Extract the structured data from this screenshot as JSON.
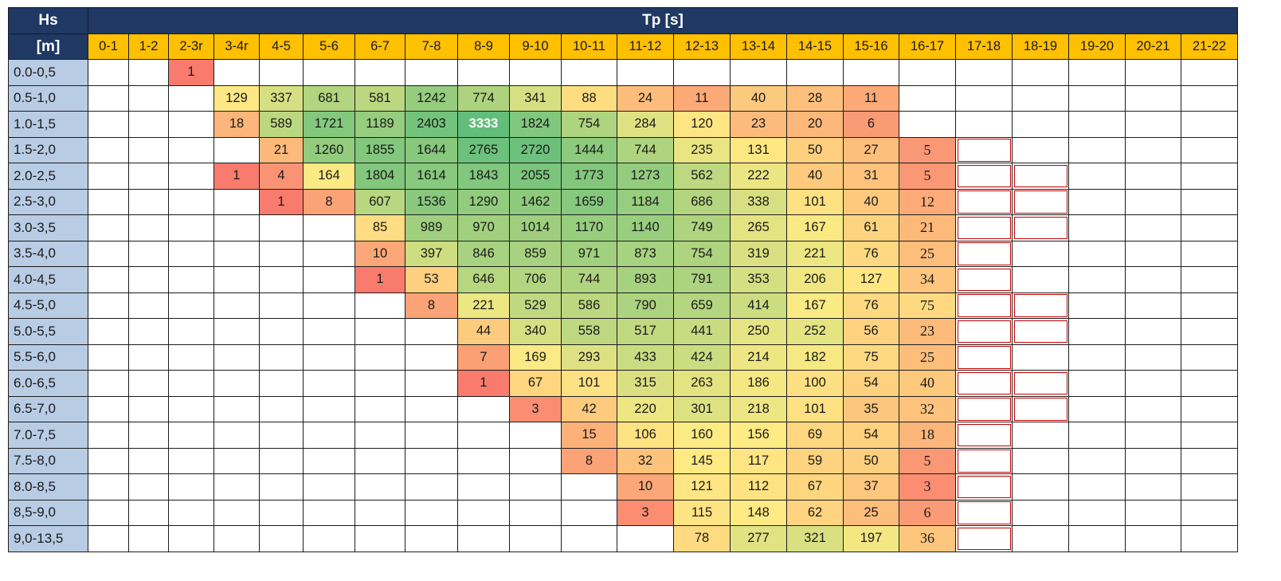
{
  "table": {
    "row_header_title": "Hs",
    "row_header_unit": "[m]",
    "col_header_title": "Tp [s]",
    "tp_bins": [
      "0-1",
      "1-2",
      "2-3r",
      "3-4r",
      "4-5",
      "5-6",
      "6-7",
      "7-8",
      "8-9",
      "9-10",
      "10-11",
      "11-12",
      "12-13",
      "13-14",
      "14-15",
      "15-16",
      "16-17",
      "17-18",
      "18-19",
      "19-20",
      "20-21",
      "21-22"
    ],
    "hs_bins": [
      "0.0-0,5",
      "0.5-1,0",
      "1.0-1,5",
      "1.5-2,0",
      "2.0-2,5",
      "2.5-3,0",
      "3.0-3,5",
      "3.5-4,0",
      "4.0-4,5",
      "4.5-5,0",
      "5.0-5,5",
      "5.5-6,0",
      "6.0-6,5",
      "6.5-7,0",
      "7.0-7,5",
      "7.5-8,0",
      "8.0-8,5",
      "8,5-9,0",
      "9,0-13,5"
    ],
    "counts": [
      [
        null,
        null,
        1,
        null,
        null,
        null,
        null,
        null,
        null,
        null,
        null,
        null,
        null,
        null,
        null,
        null,
        null,
        null,
        null,
        null,
        null,
        null
      ],
      [
        null,
        null,
        null,
        129,
        337,
        681,
        581,
        1242,
        774,
        341,
        88,
        24,
        11,
        40,
        28,
        11,
        null,
        null,
        null,
        null,
        null,
        null
      ],
      [
        null,
        null,
        null,
        18,
        589,
        1721,
        1189,
        2403,
        3333,
        1824,
        754,
        284,
        120,
        23,
        20,
        6,
        null,
        null,
        null,
        null,
        null,
        null
      ],
      [
        null,
        null,
        null,
        null,
        21,
        1260,
        1855,
        1644,
        2765,
        2720,
        1444,
        744,
        235,
        131,
        50,
        27,
        5,
        null,
        null,
        null,
        null,
        null
      ],
      [
        null,
        null,
        null,
        1,
        4,
        164,
        1804,
        1614,
        1843,
        2055,
        1773,
        1273,
        562,
        222,
        40,
        31,
        5,
        null,
        null,
        null,
        null,
        null
      ],
      [
        null,
        null,
        null,
        null,
        1,
        8,
        607,
        1536,
        1290,
        1462,
        1659,
        1184,
        686,
        338,
        101,
        40,
        12,
        null,
        null,
        null,
        null,
        null
      ],
      [
        null,
        null,
        null,
        null,
        null,
        null,
        85,
        989,
        970,
        1014,
        1170,
        1140,
        749,
        265,
        167,
        61,
        21,
        null,
        null,
        null,
        null,
        null
      ],
      [
        null,
        null,
        null,
        null,
        null,
        null,
        10,
        397,
        846,
        859,
        971,
        873,
        754,
        319,
        221,
        76,
        25,
        null,
        null,
        null,
        null,
        null
      ],
      [
        null,
        null,
        null,
        null,
        null,
        null,
        1,
        53,
        646,
        706,
        744,
        893,
        791,
        353,
        206,
        127,
        34,
        null,
        null,
        null,
        null,
        null
      ],
      [
        null,
        null,
        null,
        null,
        null,
        null,
        null,
        8,
        221,
        529,
        586,
        790,
        659,
        414,
        167,
        76,
        75,
        null,
        null,
        null,
        null,
        null
      ],
      [
        null,
        null,
        null,
        null,
        null,
        null,
        null,
        null,
        44,
        340,
        558,
        517,
        441,
        250,
        252,
        56,
        23,
        null,
        null,
        null,
        null,
        null
      ],
      [
        null,
        null,
        null,
        null,
        null,
        null,
        null,
        null,
        7,
        169,
        293,
        433,
        424,
        214,
        182,
        75,
        25,
        null,
        null,
        null,
        null,
        null
      ],
      [
        null,
        null,
        null,
        null,
        null,
        null,
        null,
        null,
        1,
        67,
        101,
        315,
        263,
        186,
        100,
        54,
        40,
        null,
        null,
        null,
        null,
        null
      ],
      [
        null,
        null,
        null,
        null,
        null,
        null,
        null,
        null,
        null,
        3,
        42,
        220,
        301,
        218,
        101,
        35,
        32,
        null,
        null,
        null,
        null,
        null
      ],
      [
        null,
        null,
        null,
        null,
        null,
        null,
        null,
        null,
        null,
        null,
        15,
        106,
        160,
        156,
        69,
        54,
        18,
        null,
        null,
        null,
        null,
        null
      ],
      [
        null,
        null,
        null,
        null,
        null,
        null,
        null,
        null,
        null,
        null,
        8,
        32,
        145,
        117,
        59,
        50,
        5,
        null,
        null,
        null,
        null,
        null
      ],
      [
        null,
        null,
        null,
        null,
        null,
        null,
        null,
        null,
        null,
        null,
        null,
        10,
        121,
        112,
        67,
        37,
        3,
        null,
        null,
        null,
        null,
        null
      ],
      [
        null,
        null,
        null,
        null,
        null,
        null,
        null,
        null,
        null,
        null,
        null,
        3,
        115,
        148,
        62,
        25,
        6,
        null,
        null,
        null,
        null,
        null
      ],
      [
        null,
        null,
        null,
        null,
        null,
        null,
        null,
        null,
        null,
        null,
        null,
        null,
        78,
        277,
        321,
        197,
        36,
        null,
        null,
        null,
        null,
        null
      ]
    ],
    "serif_col": 16,
    "red_outline_cols": [
      17,
      18
    ],
    "red_outline_rows_col17": [
      3,
      4,
      5,
      6,
      7,
      8,
      9,
      10,
      11,
      12,
      13,
      14,
      15,
      16,
      17,
      18
    ],
    "red_outline_rows_col18": [
      4,
      5,
      6,
      9,
      10,
      12,
      13
    ],
    "colors": {
      "header_bg": "#1f3864",
      "tp_bin_bg": "#ffc000",
      "hs_bin_bg": "#b8cce4",
      "scale_low": "#f8696b",
      "scale_mid": "#ffeb84",
      "scale_high": "#63be7b",
      "outline_red": "#c00000"
    }
  }
}
